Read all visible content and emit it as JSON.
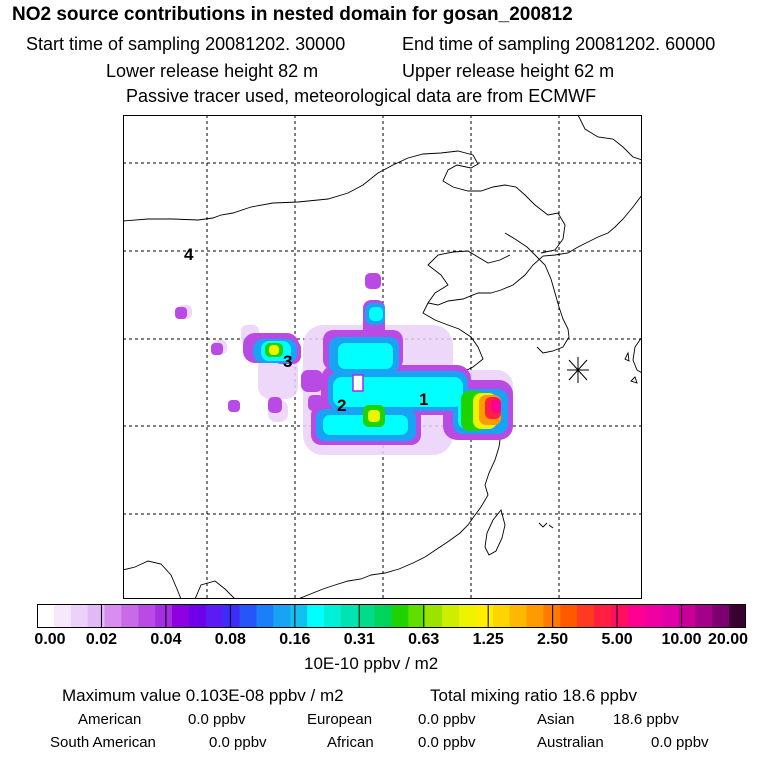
{
  "header": {
    "title": "NO2 source contributions in nested domain for gosan_200812",
    "start_time": "Start time of sampling 20081202. 30000",
    "end_time": "End time of sampling 20081202. 60000",
    "lower_release": "Lower release height   82 m",
    "upper_release": "Upper release height   62 m",
    "tracer_note": "Passive tracer used, meteorological data are from ECMWF"
  },
  "map": {
    "region_labels": [
      "1",
      "2",
      "3",
      "4"
    ],
    "receptor_marker": "asterisk-icon"
  },
  "colorbar": {
    "ticks": [
      "0.00",
      "0.02",
      "0.04",
      "0.08",
      "0.16",
      "0.31",
      "0.63",
      "1.25",
      "2.50",
      "5.00",
      "10.00",
      "20.00"
    ],
    "colors": [
      "#ffffff",
      "#f7e9fb",
      "#ecd2f8",
      "#e0b9f5",
      "#d78ef0",
      "#c96be9",
      "#b94be4",
      "#a32fe0",
      "#8d00e0",
      "#6f00ea",
      "#5a1cf2",
      "#3d2cfb",
      "#2656fa",
      "#1a7ff8",
      "#18a3f5",
      "#14c0f0",
      "#00ffff",
      "#00f0d8",
      "#00e4b4",
      "#00dc8a",
      "#00d45c",
      "#1ed300",
      "#62dd00",
      "#9ce400",
      "#cdee00",
      "#ecf400",
      "#ffee00",
      "#ffd500",
      "#ffb800",
      "#ff9a00",
      "#ff7a00",
      "#ff5a00",
      "#ff3a20",
      "#ff1f40",
      "#ff0f60",
      "#ff0090",
      "#f000a0",
      "#e000a8",
      "#c80098",
      "#a40088",
      "#7c0070",
      "#3a0030"
    ],
    "units": "10E-10 ppbv / m2"
  },
  "summary": {
    "max_value": "Maximum value  0.103E-08 ppbv / m2",
    "total_mixing": "Total mixing ratio       18.6 ppbv",
    "regions": [
      {
        "name": "American",
        "value": "0.0 ppbv"
      },
      {
        "name": "European",
        "value": "0.0 ppbv"
      },
      {
        "name": "Asian",
        "value": "18.6 ppbv"
      },
      {
        "name": "South American",
        "value": "0.0 ppbv"
      },
      {
        "name": "African",
        "value": "0.0 ppbv"
      },
      {
        "name": "Australian",
        "value": "0.0 ppbv"
      }
    ]
  }
}
